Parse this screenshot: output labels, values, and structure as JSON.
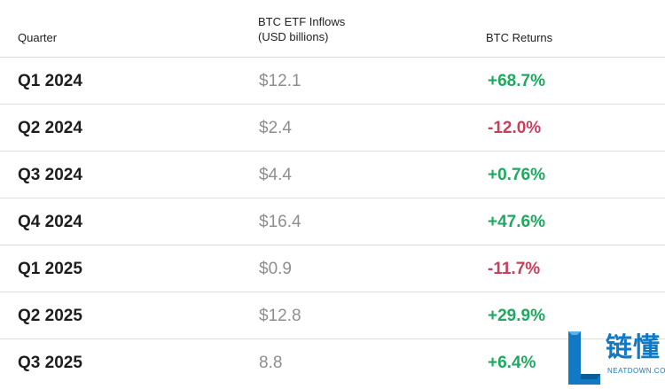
{
  "table": {
    "headers": {
      "quarter": "Quarter",
      "inflows": "BTC ETF Inflows\n(USD billions)",
      "returns": "BTC Returns"
    },
    "rows": [
      {
        "quarter": "Q1 2024",
        "inflow": "$12.1",
        "ret": "+68.7%",
        "sign": "pos"
      },
      {
        "quarter": "Q2 2024",
        "inflow": "$2.4",
        "ret": "-12.0%",
        "sign": "neg"
      },
      {
        "quarter": "Q3 2024",
        "inflow": "$4.4",
        "ret": "+0.76%",
        "sign": "pos"
      },
      {
        "quarter": "Q4 2024",
        "inflow": "$16.4",
        "ret": "+47.6%",
        "sign": "pos"
      },
      {
        "quarter": "Q1 2025",
        "inflow": "$0.9",
        "ret": "-11.7%",
        "sign": "neg"
      },
      {
        "quarter": "Q2 2025",
        "inflow": "$12.8",
        "ret": "+29.9%",
        "sign": "pos"
      },
      {
        "quarter": "Q3 2025",
        "inflow": "8.8",
        "ret": "+6.4%",
        "sign": "pos"
      }
    ]
  },
  "colors": {
    "positive": "#1fa960",
    "negative": "#cc3d5c",
    "brand": "#1279c4"
  },
  "watermark": {
    "name_cn": "链懂",
    "name_en": "NEATDOWN.COM"
  }
}
